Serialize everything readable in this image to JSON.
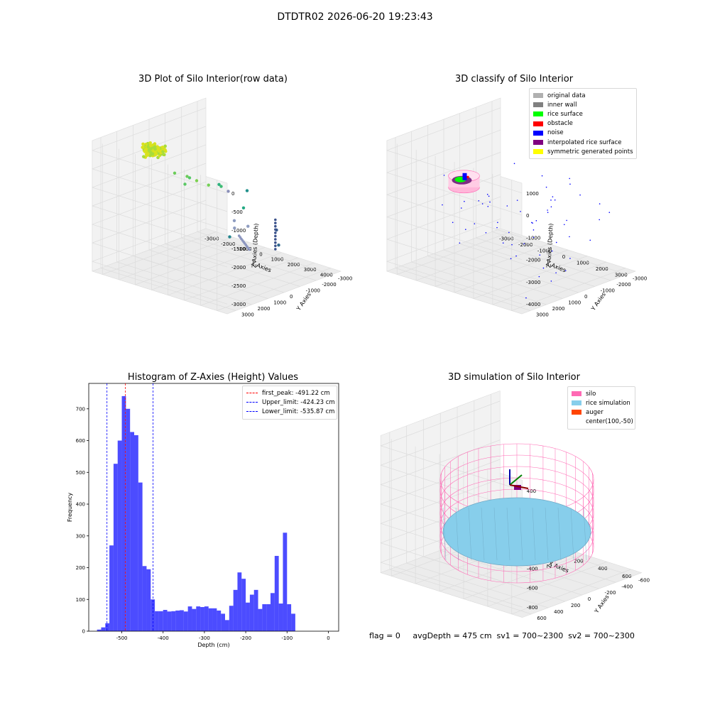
{
  "suptitle": "DTDTR02 2026-06-20 19:23:43",
  "footer": "flag = 0     avgDepth = 475 cm  sv1 = 700~2300  sv2 = 700~2300",
  "colors": {
    "hist": "#0000ff",
    "silo": "#ff69b4",
    "rice": "#87ceeb",
    "auger": "#ff4500"
  },
  "chart_data": [
    {
      "type": "scatter",
      "subtype": "3d",
      "title": "3D Plot of Silo Interior(row data)",
      "xlabel": "X Axies",
      "ylabel": "Y Axies",
      "zlabel": "Z Axies (Depth)",
      "xticks": [
        "-3000",
        "-2000",
        "-1000",
        "0",
        "1000",
        "2000",
        "3000",
        "4000"
      ],
      "yticks": [
        "-3000",
        "-2000",
        "-1000",
        "0",
        "1000",
        "2000",
        "3000"
      ],
      "zticks": [
        "0",
        "-500",
        "-1000",
        "-1500",
        "-2000",
        "-2500",
        "-3000"
      ]
    },
    {
      "type": "scatter",
      "subtype": "3d",
      "title": "3D classify of Silo Interior",
      "xlabel": "X Axies",
      "ylabel": "Y Axies",
      "zlabel": "Z Axies (Depth)",
      "xticks": [
        "-3000",
        "-2000",
        "-1000",
        "0",
        "1000",
        "2000",
        "3000"
      ],
      "yticks": [
        "-3000",
        "-2000",
        "-1000",
        "0",
        "1000",
        "2000",
        "3000"
      ],
      "zticks": [
        "1000",
        "0",
        "-1000",
        "-2000",
        "-3000",
        "-4000"
      ],
      "legend": [
        {
          "label": "original data",
          "color": "#b0b0b0"
        },
        {
          "label": "inner wall",
          "color": "#808080"
        },
        {
          "label": "rice surface",
          "color": "#00ff00"
        },
        {
          "label": "obstacle",
          "color": "#ff0000"
        },
        {
          "label": "noise",
          "color": "#0000ff"
        },
        {
          "label": "interpolated rice surface",
          "color": "#800080"
        },
        {
          "label": "symmetric generated points",
          "color": "#ffff00"
        }
      ]
    },
    {
      "type": "bar",
      "subtype": "histogram",
      "title": "Histogram of Z-Axies (Height) Values",
      "xlabel": "Depth (cm)",
      "ylabel": "Frequency",
      "xlim": [
        -580,
        25
      ],
      "ylim": [
        0,
        780
      ],
      "xticks": [
        -500,
        -400,
        -300,
        -200,
        -100,
        0
      ],
      "yticks": [
        0,
        100,
        200,
        300,
        400,
        500,
        600,
        700
      ],
      "bin_width": 10,
      "bin_start": -560,
      "values": [
        5,
        12,
        25,
        270,
        527,
        600,
        740,
        700,
        627,
        617,
        468,
        205,
        195,
        100,
        63,
        63,
        67,
        62,
        63,
        65,
        66,
        62,
        78,
        70,
        78,
        76,
        78,
        72,
        72,
        65,
        55,
        35,
        80,
        130,
        185,
        165,
        90,
        115,
        130,
        70,
        85,
        85,
        120,
        237,
        87,
        310,
        85,
        55
      ],
      "vlines": [
        {
          "label": "first_peak: -491.22 cm",
          "x": -491.22,
          "color": "#ff0000"
        },
        {
          "label": "Upper_limit: -424.23 cm",
          "x": -424.23,
          "color": "#0000ff"
        },
        {
          "label": "Lower_limit: -535.87 cm",
          "x": -535.87,
          "color": "#0000ff"
        }
      ]
    },
    {
      "type": "scatter",
      "subtype": "3d",
      "title": "3D simulation of Silo Interior",
      "xlabel": "X Axies",
      "ylabel": "Y Axies",
      "zlabel": "Z Axies (Depth)",
      "xticks": [
        "-400",
        "-200",
        "0",
        "200",
        "400",
        "600"
      ],
      "yticks": [
        "-600",
        "-400",
        "-200",
        "0",
        "200",
        "400",
        "600"
      ],
      "zticks": [
        "400",
        "200",
        "0",
        "-200",
        "-400",
        "-600",
        "-800"
      ],
      "legend": [
        {
          "label": "silo",
          "color": "#ff69b4"
        },
        {
          "label": "rice simulation",
          "color": "#87ceeb"
        },
        {
          "label": "auger",
          "color": "#ff4500"
        },
        {
          "label": "center(100,-50)",
          "color": ""
        }
      ]
    }
  ]
}
